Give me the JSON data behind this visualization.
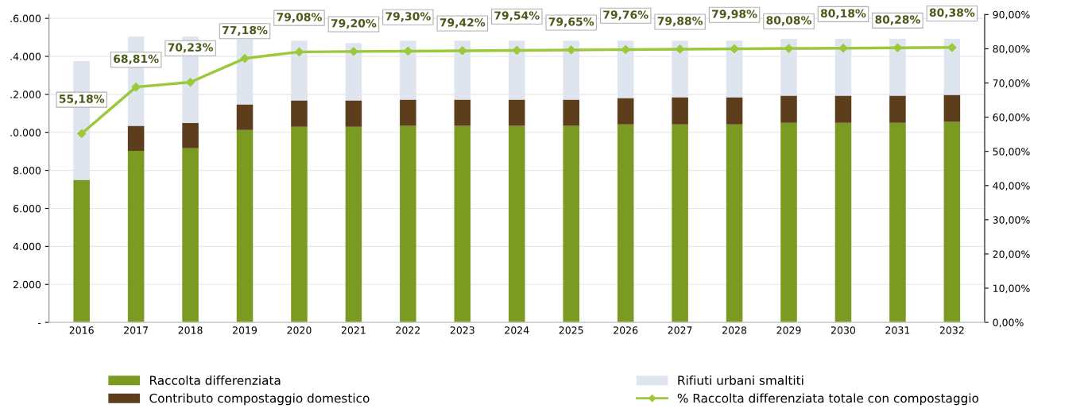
{
  "chart_data": {
    "type": "bar",
    "stacked": true,
    "categories": [
      "2016",
      "2017",
      "2018",
      "2019",
      "2020",
      "2021",
      "2022",
      "2023",
      "2024",
      "2025",
      "2026",
      "2027",
      "2028",
      "2029",
      "2030",
      "2031",
      "2032"
    ],
    "series": [
      {
        "name": "Raccolta differenziata",
        "color": "#7a9a22",
        "values": [
          7500,
          9030,
          9160,
          10130,
          10290,
          10290,
          10340,
          10340,
          10340,
          10340,
          10420,
          10420,
          10420,
          10500,
          10500,
          10500,
          10550
        ]
      },
      {
        "name": "Contributo compostaggio domestico",
        "color": "#5c3d1c",
        "values": [
          0,
          1310,
          1340,
          1340,
          1390,
          1390,
          1380,
          1380,
          1380,
          1380,
          1390,
          1430,
          1430,
          1430,
          1430,
          1430,
          1420
        ]
      },
      {
        "name": "Rifiuti urbani smaltiti",
        "color": "#dfe5ef",
        "values": [
          6250,
          4700,
          4540,
          3430,
          3150,
          3020,
          3100,
          3100,
          3100,
          3100,
          3010,
          2970,
          2970,
          2990,
          2990,
          2990,
          2950
        ]
      },
      {
        "name": "% Raccolta differenziata totale con compostaggio",
        "type": "line",
        "axis": "y2",
        "color": "#9cc83c",
        "marker": "diamond",
        "values": [
          55.18,
          68.81,
          70.23,
          77.18,
          79.08,
          79.2,
          79.3,
          79.42,
          79.54,
          79.65,
          79.76,
          79.88,
          79.98,
          80.08,
          80.18,
          80.28,
          80.38
        ],
        "value_labels": [
          "55,18%",
          "68,81%",
          "70,23%",
          "77,18%",
          "79,08%",
          "79,20%",
          "79,30%",
          "79,42%",
          "79,54%",
          "79,65%",
          "79,76%",
          "79,88%",
          "79,98%",
          "80,08%",
          "80,18%",
          "80,28%",
          "80,38%"
        ]
      }
    ],
    "ylim": [
      0,
      16200
    ],
    "yticks": [
      {
        "value": 0,
        "label": "-"
      },
      {
        "value": 2000,
        "label": "2.000"
      },
      {
        "value": 4000,
        "label": "4.000"
      },
      {
        "value": 6000,
        "label": "6.000"
      },
      {
        "value": 8000,
        "label": "8.000"
      },
      {
        "value": 10000,
        "label": ".0.000"
      },
      {
        "value": 12000,
        "label": ".2.000"
      },
      {
        "value": 14000,
        "label": ".4.000"
      },
      {
        "value": 16000,
        "label": ".6.000"
      }
    ],
    "y2lim": [
      0,
      90
    ],
    "y2ticks": [
      {
        "value": 0,
        "label": "0,00%"
      },
      {
        "value": 10,
        "label": "10,00%"
      },
      {
        "value": 20,
        "label": "20,00%"
      },
      {
        "value": 30,
        "label": "30,00%"
      },
      {
        "value": 40,
        "label": "40,00%"
      },
      {
        "value": 50,
        "label": "50,00%"
      },
      {
        "value": 60,
        "label": "60,00%"
      },
      {
        "value": 70,
        "label": "70,00%"
      },
      {
        "value": 80,
        "label": "80,00%"
      },
      {
        "value": 90,
        "label": "90,00%"
      }
    ],
    "grid": "y",
    "legend": "bottom"
  }
}
